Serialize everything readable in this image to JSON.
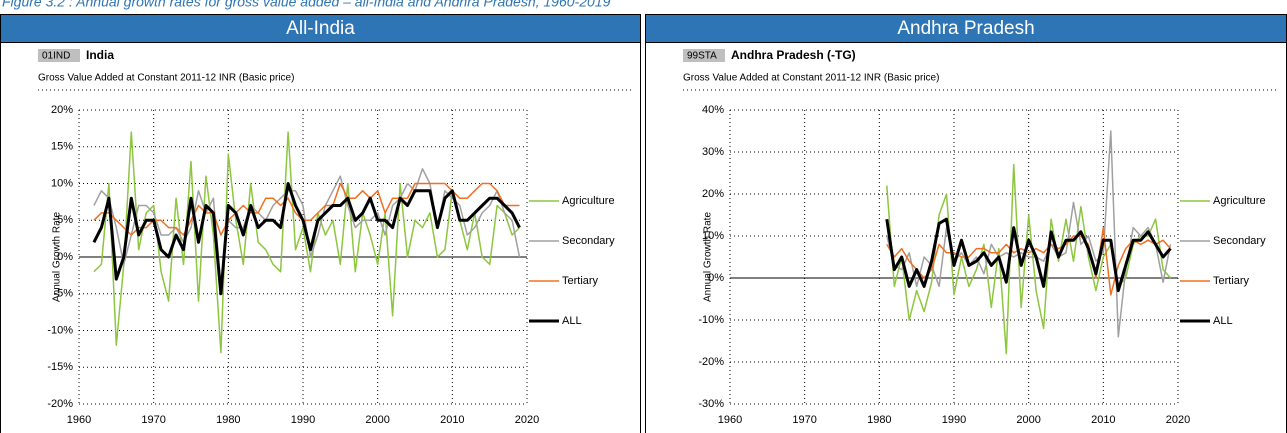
{
  "caption": "Figure 3.2 : Annual growth rates for gross value added – all-India and Andhra Pradesh, 1960-2019",
  "chart_data": [
    {
      "type": "line",
      "title": "All-India",
      "code": "01IND",
      "region": "India",
      "subtitle": "Gross Value Added at Constant 2011-12 INR (Basic price)",
      "y_label": "Annual Growth Rate",
      "x": [
        1962,
        1963,
        1964,
        1965,
        1966,
        1967,
        1968,
        1969,
        1970,
        1971,
        1972,
        1973,
        1974,
        1975,
        1976,
        1977,
        1978,
        1979,
        1980,
        1981,
        1982,
        1983,
        1984,
        1985,
        1986,
        1987,
        1988,
        1989,
        1990,
        1991,
        1992,
        1993,
        1994,
        1995,
        1996,
        1997,
        1998,
        1999,
        2000,
        2001,
        2002,
        2003,
        2004,
        2005,
        2006,
        2007,
        2008,
        2009,
        2010,
        2011,
        2012,
        2013,
        2014,
        2015,
        2016,
        2017,
        2018,
        2019
      ],
      "series": [
        {
          "name": "Agriculture",
          "color": "#8dc63f",
          "width": 1.5,
          "values": [
            -2,
            -1,
            10,
            -12,
            -1,
            17,
            1,
            6,
            7,
            -2,
            -6,
            8,
            -1,
            13,
            -6,
            11,
            3,
            -13,
            14,
            5,
            -1,
            10,
            2,
            1,
            -1,
            -2,
            17,
            1,
            4,
            -2,
            6,
            3,
            5,
            -1,
            10,
            -2,
            6,
            3,
            -1,
            6,
            -8,
            10,
            0,
            5,
            4,
            6,
            0,
            1,
            9,
            5,
            1,
            6,
            0,
            -1,
            7,
            6,
            3,
            4
          ]
        },
        {
          "name": "Secondary",
          "color": "#a0a0a0",
          "width": 1.5,
          "values": [
            7,
            9,
            8,
            4,
            -1,
            3,
            7,
            7,
            6,
            3,
            3,
            4,
            2,
            4,
            9,
            6,
            8,
            -4,
            5,
            4,
            4,
            7,
            6,
            5,
            7,
            8,
            9,
            9,
            7,
            0,
            3,
            7,
            9,
            11,
            7,
            4,
            5,
            5,
            6,
            3,
            7,
            8,
            10,
            9,
            12,
            10,
            4,
            9,
            8,
            7,
            3,
            4,
            6,
            7,
            9,
            6,
            5,
            0
          ]
        },
        {
          "name": "Tertiary",
          "color": "#f07022",
          "width": 1.5,
          "values": [
            5,
            6,
            6,
            5,
            4,
            3,
            4,
            4,
            5,
            5,
            4,
            4,
            3,
            5,
            7,
            6,
            6,
            3,
            5,
            6,
            7,
            6,
            6,
            8,
            8,
            7,
            8,
            6,
            5,
            5,
            6,
            7,
            7,
            10,
            8,
            8,
            9,
            8,
            9,
            6,
            8,
            8,
            8,
            10,
            10,
            10,
            10,
            10,
            9,
            8,
            8,
            9,
            10,
            10,
            9,
            7,
            7,
            7
          ]
        },
        {
          "name": "ALL",
          "color": "#000000",
          "width": 3,
          "values": [
            2,
            4,
            8,
            -3,
            0,
            8,
            3,
            5,
            5,
            1,
            0,
            3,
            1,
            8,
            2,
            7,
            6,
            -5,
            7,
            6,
            3,
            7,
            4,
            5,
            5,
            4,
            10,
            7,
            5,
            1,
            5,
            6,
            7,
            7,
            8,
            5,
            6,
            8,
            5,
            5,
            4,
            8,
            7,
            9,
            9,
            9,
            4,
            8,
            9,
            5,
            5,
            6,
            7,
            8,
            8,
            7,
            6,
            4
          ]
        }
      ],
      "xlim": [
        1960,
        2020
      ],
      "xticks": [
        1960,
        1970,
        1980,
        1990,
        2000,
        2010,
        2020
      ],
      "ylim": [
        -20,
        20
      ],
      "yticks": [
        {
          "value": -20,
          "label": "-20%"
        },
        {
          "value": -15,
          "label": "-15%"
        },
        {
          "value": -10,
          "label": "-10%"
        },
        {
          "value": -5,
          "label": "-5%"
        },
        {
          "value": 0,
          "label": "0%"
        },
        {
          "value": 5,
          "label": "5%"
        },
        {
          "value": 10,
          "label": "10%"
        },
        {
          "value": 15,
          "label": "15%"
        },
        {
          "value": 20,
          "label": "20%"
        }
      ],
      "grid": true
    },
    {
      "type": "line",
      "title": "Andhra Pradesh",
      "code": "99STA",
      "region": "Andhra Pradesh (-TG)",
      "subtitle": "Gross Value Added at Constant 2011-12 INR (Basic price)",
      "y_label": "Annual Growth Rate",
      "x": [
        1981,
        1982,
        1983,
        1984,
        1985,
        1986,
        1987,
        1988,
        1989,
        1990,
        1991,
        1992,
        1993,
        1994,
        1995,
        1996,
        1997,
        1998,
        1999,
        2000,
        2001,
        2002,
        2003,
        2004,
        2005,
        2006,
        2007,
        2008,
        2009,
        2010,
        2011,
        2012,
        2013,
        2014,
        2015,
        2016,
        2017,
        2018,
        2019
      ],
      "series": [
        {
          "name": "Agriculture",
          "color": "#8dc63f",
          "width": 1.5,
          "values": [
            22,
            -2,
            5,
            -10,
            -3,
            -8,
            -1,
            15,
            20,
            -4,
            5,
            -2,
            2,
            8,
            -7,
            7,
            -18,
            27,
            -7,
            15,
            -3,
            -12,
            14,
            4,
            14,
            4,
            17,
            5,
            -3,
            5,
            8,
            -2,
            0,
            8,
            10,
            10,
            14,
            2,
            0
          ]
        },
        {
          "name": "Secondary",
          "color": "#a0a0a0",
          "width": 1.5,
          "values": [
            10,
            3,
            2,
            6,
            -2,
            5,
            3,
            -2,
            12,
            4,
            6,
            3,
            5,
            1,
            8,
            5,
            6,
            5,
            6,
            5,
            5,
            4,
            8,
            5,
            6,
            18,
            8,
            10,
            4,
            6,
            35,
            -14,
            2,
            12,
            10,
            12,
            8,
            -1,
            8
          ]
        },
        {
          "name": "Tertiary",
          "color": "#f07022",
          "width": 1.5,
          "values": [
            8,
            5,
            7,
            4,
            2,
            0,
            2,
            8,
            6,
            6,
            5,
            5,
            7,
            7,
            6,
            6,
            8,
            6,
            7,
            6,
            7,
            6,
            8,
            7,
            8,
            10,
            10,
            8,
            0,
            12,
            -4,
            3,
            7,
            9,
            8,
            9,
            8,
            9,
            7
          ]
        },
        {
          "name": "ALL",
          "color": "#000000",
          "width": 3,
          "values": [
            14,
            2,
            5,
            -2,
            2,
            -2,
            4,
            13,
            14,
            3,
            9,
            3,
            4,
            6,
            3,
            5,
            -1,
            12,
            3,
            9,
            5,
            -2,
            11,
            5,
            9,
            9,
            11,
            7,
            1,
            9,
            9,
            -3,
            3,
            9,
            9,
            11,
            8,
            5,
            7
          ]
        }
      ],
      "xlim": [
        1960,
        2020
      ],
      "xticks": [
        1960,
        1970,
        1980,
        1990,
        2000,
        2010,
        2020
      ],
      "ylim": [
        -30,
        40
      ],
      "yticks": [
        {
          "value": -30,
          "label": "-30%"
        },
        {
          "value": -20,
          "label": "-20%"
        },
        {
          "value": -10,
          "label": "-10%"
        },
        {
          "value": 0,
          "label": "0%"
        },
        {
          "value": 10,
          "label": "10%"
        },
        {
          "value": 20,
          "label": "20%"
        },
        {
          "value": 30,
          "label": "30%"
        },
        {
          "value": 40,
          "label": "40%"
        }
      ],
      "grid": true
    }
  ]
}
